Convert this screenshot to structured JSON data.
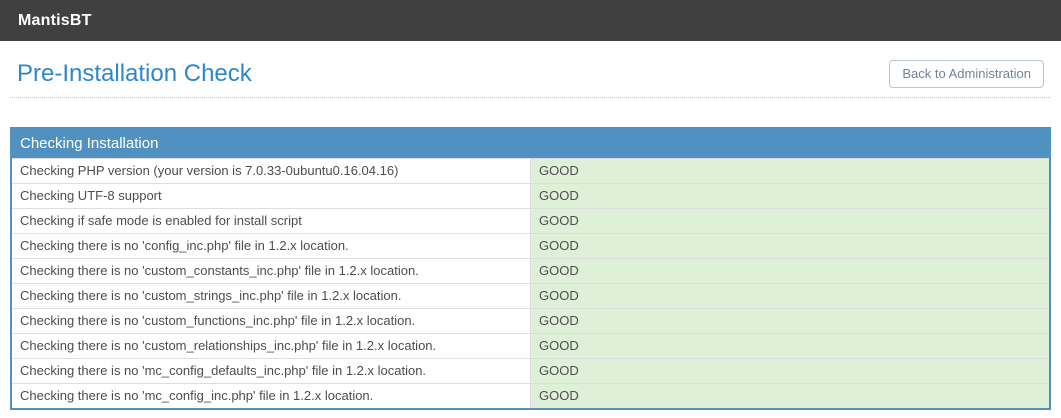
{
  "navbar": {
    "brand": "MantisBT"
  },
  "page": {
    "title": "Pre-Installation Check",
    "back_button_label": "Back to Administration"
  },
  "table": {
    "header": "Checking Installation",
    "columns": [
      "description",
      "status"
    ],
    "rows": [
      {
        "description": "Checking PHP version (your version is 7.0.33-0ubuntu0.16.04.16)",
        "status": "GOOD"
      },
      {
        "description": "Checking UTF-8 support",
        "status": "GOOD"
      },
      {
        "description": "Checking if safe mode is enabled for install script",
        "status": "GOOD"
      },
      {
        "description": "Checking there is no 'config_inc.php' file in 1.2.x location.",
        "status": "GOOD"
      },
      {
        "description": "Checking there is no 'custom_constants_inc.php' file in 1.2.x location.",
        "status": "GOOD"
      },
      {
        "description": "Checking there is no 'custom_strings_inc.php' file in 1.2.x location.",
        "status": "GOOD"
      },
      {
        "description": "Checking there is no 'custom_functions_inc.php' file in 1.2.x location.",
        "status": "GOOD"
      },
      {
        "description": "Checking there is no 'custom_relationships_inc.php' file in 1.2.x location.",
        "status": "GOOD"
      },
      {
        "description": "Checking there is no 'mc_config_defaults_inc.php' file in 1.2.x location.",
        "status": "GOOD"
      },
      {
        "description": "Checking there is no 'mc_config_inc.php' file in 1.2.x location.",
        "status": "GOOD"
      }
    ]
  },
  "colors": {
    "navbar_bg": "#404040",
    "heading_text": "#2e87c8",
    "table_header_bg": "#5091c1",
    "table_border": "#5091c1",
    "good_cell_bg": "#dff0d8",
    "good_cell_text": "#474747"
  }
}
